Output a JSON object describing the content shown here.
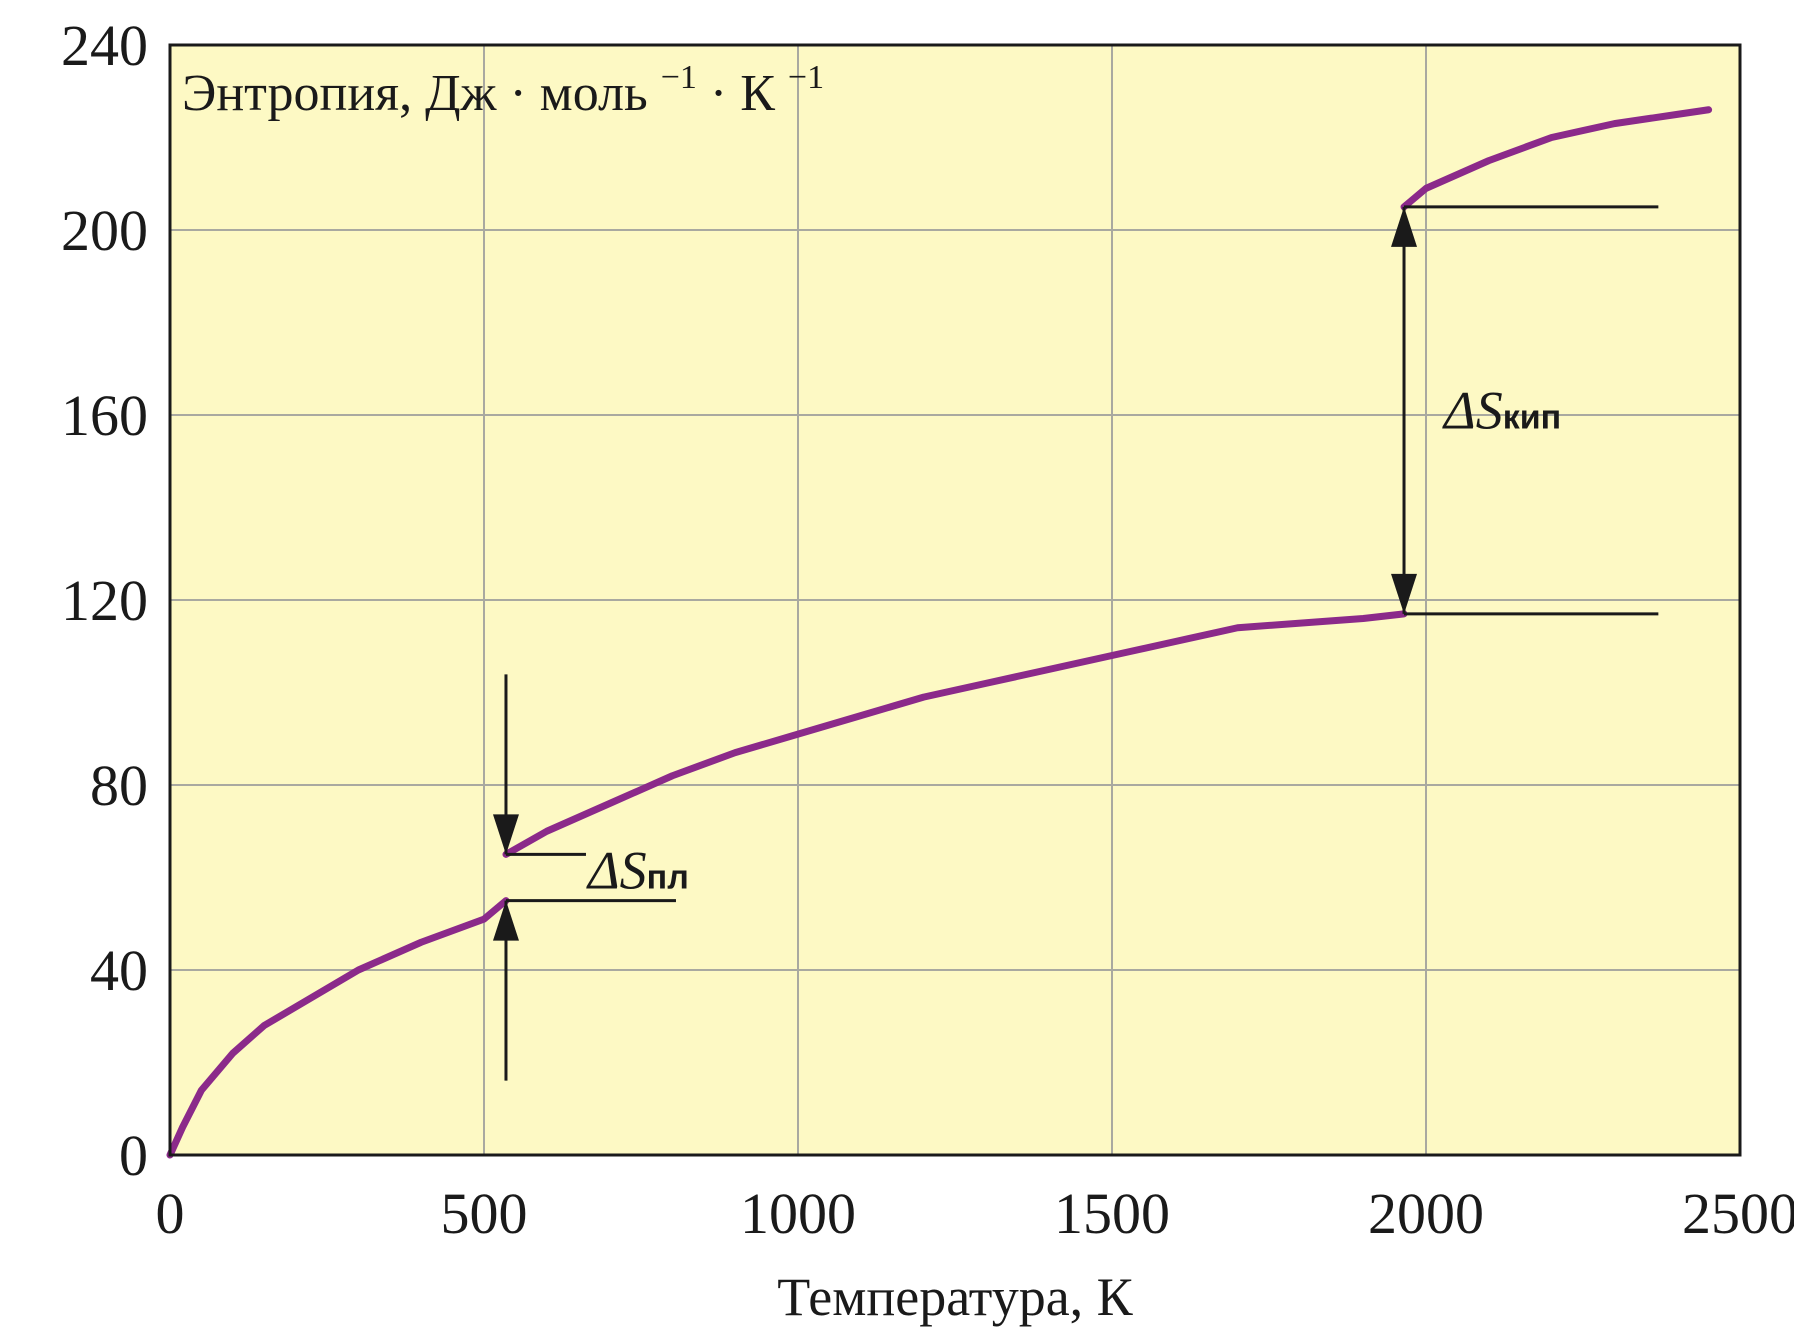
{
  "chart_data": {
    "type": "line",
    "title": "",
    "ylabel_text": "Энтропия, Дж · моль",
    "ylabel_sup1": "−1",
    "ylabel_mid": " · К",
    "ylabel_sup2": "−1",
    "xlabel": "Температура, К",
    "xlim": [
      0,
      2500
    ],
    "ylim": [
      0,
      240
    ],
    "xticks": [
      "0",
      "500",
      "1000",
      "1500",
      "2000",
      "2500"
    ],
    "yticks": [
      "0",
      "40",
      "80",
      "120",
      "160",
      "200",
      "240"
    ],
    "grid": true,
    "colors": {
      "background": "#fdf9c4",
      "curve": "#8b2a8a",
      "grid": "#a9a9a0",
      "frame": "#1a1a1a"
    },
    "series": [
      {
        "segments": [
          {
            "x": [
              0,
              20,
              50,
              100,
              150,
              200,
              300,
              400,
              500,
              535
            ],
            "y": [
              0,
              6,
              14,
              22,
              28,
              32,
              40,
              46,
              51,
              55
            ]
          },
          {
            "x": [
              535,
              600,
              700,
              800,
              900,
              1000,
              1100,
              1200,
              1300,
              1400,
              1500,
              1600,
              1700,
              1800,
              1900,
              1965
            ],
            "y": [
              65,
              70,
              76,
              82,
              87,
              91,
              95,
              99,
              102,
              105,
              108,
              111,
              114,
              115,
              116,
              117
            ]
          },
          {
            "x": [
              1965,
              2000,
              2100,
              2200,
              2300,
              2400,
              2450
            ],
            "y": [
              205,
              209,
              215,
              220,
              223,
              225,
              226
            ]
          }
        ]
      }
    ],
    "annotations": [
      {
        "label": "ΔS",
        "subscript": "пл",
        "x": 535,
        "y_from": 55,
        "y_to": 65
      },
      {
        "label": "ΔS",
        "subscript": "кип",
        "x": 1965,
        "y_from": 117,
        "y_to": 205
      }
    ]
  }
}
